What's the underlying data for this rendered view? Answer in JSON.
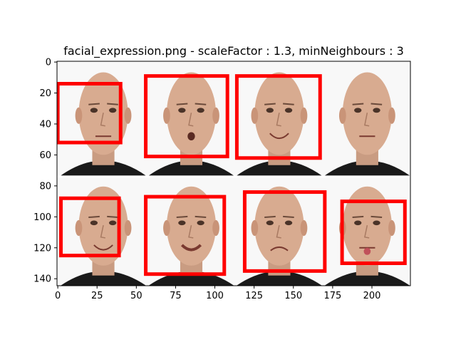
{
  "chart_data": {
    "type": "image",
    "title": "facial_expression.png - scaleFactor : 1.3, minNeighbours : 3",
    "xlabel": "",
    "ylabel": "",
    "xlim": [
      -0.5,
      224.5
    ],
    "ylim": [
      144.5,
      -0.5
    ],
    "xticks": [
      0,
      25,
      50,
      75,
      100,
      125,
      150,
      175,
      200
    ],
    "yticks_top": [
      0,
      20,
      40,
      60
    ],
    "yticks_bottom": [
      80,
      100,
      120,
      140
    ],
    "grid": false,
    "frame_color": "#000000",
    "image_background": "#f8f8f8",
    "row_divider_y": 74,
    "box_color": "#ff0000",
    "faces": [
      {
        "col": 0,
        "row": 0,
        "expression": "neutral"
      },
      {
        "col": 1,
        "row": 0,
        "expression": "surprised"
      },
      {
        "col": 2,
        "row": 0,
        "expression": "smiling"
      },
      {
        "col": 3,
        "row": 0,
        "expression": "eyes-rolled"
      },
      {
        "col": 0,
        "row": 1,
        "expression": "smiling"
      },
      {
        "col": 1,
        "row": 1,
        "expression": "grinning"
      },
      {
        "col": 2,
        "row": 1,
        "expression": "frowning"
      },
      {
        "col": 3,
        "row": 1,
        "expression": "tongue-out"
      }
    ],
    "detections": [
      {
        "x0": 0,
        "y0": 14,
        "x1": 40,
        "y1": 52
      },
      {
        "x0": 56,
        "y0": 9,
        "x1": 108,
        "y1": 61
      },
      {
        "x0": 114,
        "y0": 9,
        "x1": 167,
        "y1": 62
      },
      {
        "x0": 2,
        "y0": 88,
        "x1": 39,
        "y1": 125
      },
      {
        "x0": 56,
        "y0": 87,
        "x1": 106,
        "y1": 137
      },
      {
        "x0": 119,
        "y0": 84,
        "x1": 170,
        "y1": 135
      },
      {
        "x0": 181,
        "y0": 90,
        "x1": 221,
        "y1": 130
      }
    ]
  }
}
